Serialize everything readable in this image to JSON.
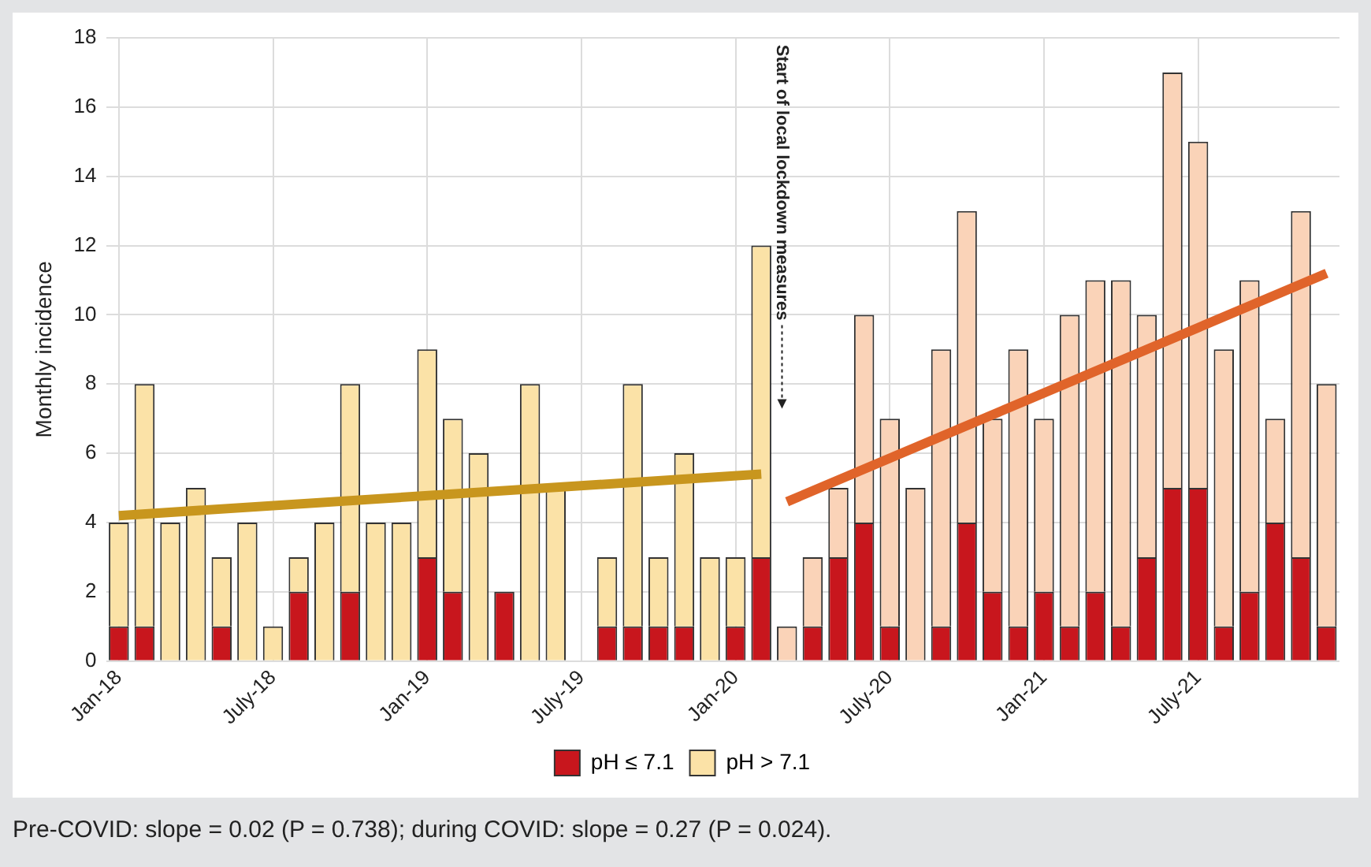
{
  "chart_data": {
    "type": "bar",
    "stacked": true,
    "ylabel": "Monthly incidence",
    "categories": [
      "Jan-18",
      null,
      null,
      null,
      null,
      null,
      "July-18",
      null,
      null,
      null,
      null,
      null,
      "Jan-19",
      null,
      null,
      null,
      null,
      null,
      "July-19",
      null,
      null,
      null,
      null,
      null,
      "Jan-20",
      null,
      null,
      null,
      null,
      null,
      "July-20",
      null,
      null,
      null,
      null,
      null,
      "Jan-21",
      null,
      null,
      null,
      null,
      null,
      "July-21",
      null,
      null,
      null,
      null,
      null
    ],
    "series": [
      {
        "name": "pH ≤ 7.1",
        "color": "#c8161d",
        "values": [
          1,
          1,
          0,
          0,
          1,
          0,
          0,
          2,
          0,
          2,
          0,
          0,
          3,
          2,
          0,
          2,
          0,
          0,
          0,
          1,
          1,
          1,
          1,
          0,
          1,
          3,
          0,
          1,
          3,
          4,
          1,
          0,
          1,
          4,
          2,
          1,
          2,
          1,
          2,
          1,
          3,
          5,
          5,
          1,
          2,
          4,
          3,
          1
        ]
      },
      {
        "name": "pH > 7.1",
        "color": "#fbe2a7",
        "colors": [
          "#fbe2a7",
          "#fbe2a7",
          "#fbe2a7",
          "#fbe2a7",
          "#fbe2a7",
          "#fbe2a7",
          "#fbe2a7",
          "#fbe2a7",
          "#fbe2a7",
          "#fbe2a7",
          "#fbe2a7",
          "#fbe2a7",
          "#fbe2a7",
          "#fbe2a7",
          "#fbe2a7",
          "#fbe2a7",
          "#fbe2a7",
          "#fbe2a7",
          "#fbe2a7",
          "#fbe2a7",
          "#fbe2a7",
          "#fbe2a7",
          "#fbe2a7",
          "#fbe2a7",
          "#fbe2a7",
          "#fbe2a7",
          "#fad3b8",
          "#fad3b8",
          "#fad3b8",
          "#fad3b8",
          "#fad3b8",
          "#fad3b8",
          "#fad3b8",
          "#fad3b8",
          "#fad3b8",
          "#fad3b8",
          "#fad3b8",
          "#fad3b8",
          "#fad3b8",
          "#fad3b8",
          "#fad3b8",
          "#fad3b8",
          "#fad3b8",
          "#fad3b8",
          "#fad3b8",
          "#fad3b8",
          "#fad3b8",
          "#fad3b8"
        ],
        "values": [
          3,
          7,
          4,
          5,
          2,
          4,
          1,
          1,
          4,
          6,
          4,
          4,
          6,
          5,
          6,
          0,
          8,
          5,
          0,
          2,
          7,
          2,
          5,
          3,
          2,
          9,
          1,
          2,
          2,
          6,
          6,
          5,
          8,
          9,
          5,
          8,
          5,
          9,
          9,
          10,
          7,
          12,
          10,
          8,
          9,
          3,
          10,
          7
        ]
      },
      {
        "type": "line",
        "color": "#c8961e",
        "values": [
          4.2,
          null,
          null,
          null,
          null,
          null,
          null,
          null,
          null,
          null,
          null,
          null,
          null,
          null,
          null,
          null,
          null,
          null,
          null,
          null,
          null,
          null,
          null,
          null,
          null,
          5.4,
          null,
          null,
          null,
          null,
          null,
          null,
          null,
          null,
          null,
          null,
          null,
          null,
          null,
          null,
          null,
          null,
          null,
          null,
          null,
          null,
          null,
          null
        ]
      },
      {
        "type": "line",
        "color": "#e0642a",
        "values": [
          null,
          null,
          null,
          null,
          null,
          null,
          null,
          null,
          null,
          null,
          null,
          null,
          null,
          null,
          null,
          null,
          null,
          null,
          null,
          null,
          null,
          null,
          null,
          null,
          null,
          null,
          4.6,
          null,
          null,
          null,
          null,
          null,
          null,
          null,
          null,
          null,
          null,
          null,
          null,
          null,
          null,
          null,
          null,
          null,
          null,
          null,
          null,
          11.2
        ]
      }
    ],
    "ylim": [
      0,
      18
    ],
    "yticks": [
      0,
      2,
      4,
      6,
      8,
      10,
      12,
      14,
      16,
      18
    ],
    "grid": true,
    "legend": "bottom",
    "marker": "none",
    "annotations": [
      "Start of local lockdown measures",
      "Pre-COVID: slope = 0.02 (P = 0.738); during COVID: slope = 0.27 (P = 0.024)."
    ]
  }
}
